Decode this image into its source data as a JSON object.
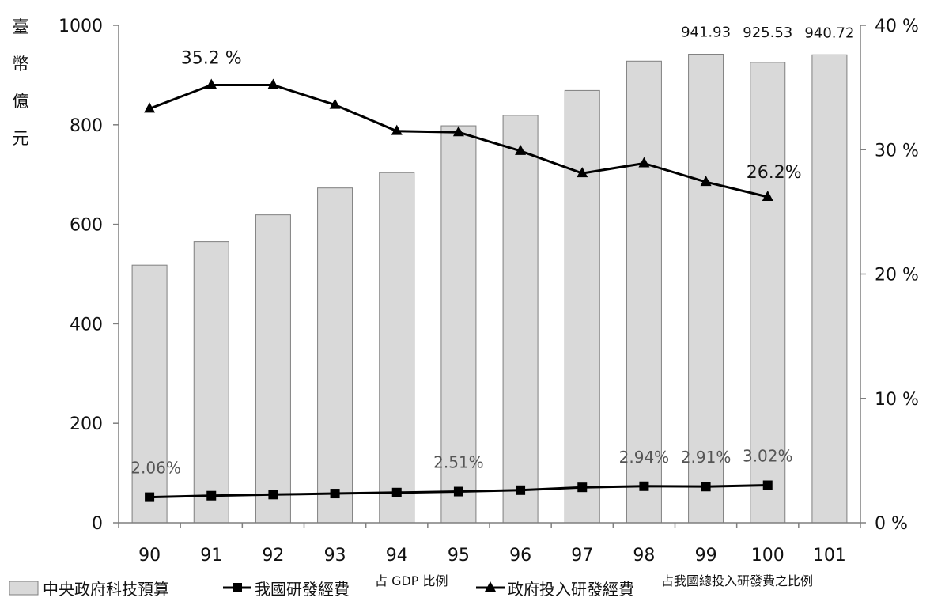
{
  "chart_data": {
    "type": "bar",
    "title": "",
    "xlabel": "",
    "ylabel": "臺幣億元",
    "categories": [
      "90",
      "91",
      "92",
      "93",
      "94",
      "95",
      "96",
      "97",
      "98",
      "99",
      "100",
      "101"
    ],
    "ylim": [
      0,
      1000
    ],
    "y_ticks": [
      "0",
      "200",
      "400",
      "600",
      "800",
      "1000"
    ],
    "y2lim": [
      0,
      40
    ],
    "y2_ticks": [
      "0 %",
      "10 %",
      "20 %",
      "30 %",
      "40 %"
    ],
    "grid": false,
    "legend_position": "bottom",
    "series": [
      {
        "name": "中央政府科技預算",
        "type": "bar",
        "axis": "left",
        "color": "#d9d9d9",
        "values": [
          518,
          565,
          619,
          673,
          704,
          798,
          819,
          869,
          928,
          941.93,
          925.53,
          940.72
        ]
      },
      {
        "name": "我國研發經費",
        "type": "line",
        "axis": "right",
        "marker": "square",
        "color": "#000000",
        "values": [
          2.06,
          2.18,
          2.27,
          2.35,
          2.43,
          2.51,
          2.62,
          2.85,
          2.94,
          2.91,
          3.02,
          null
        ]
      },
      {
        "name": "政府投入研發經費",
        "type": "line",
        "axis": "right",
        "marker": "triangle",
        "color": "#000000",
        "values": [
          33.3,
          35.2,
          35.2,
          33.6,
          31.5,
          31.4,
          29.9,
          28.1,
          28.9,
          27.4,
          26.2,
          null
        ]
      }
    ],
    "bar_labels": [
      {
        "index": 9,
        "text": "941.93"
      },
      {
        "index": 10,
        "text": "925.53"
      },
      {
        "index": 11,
        "text": "940.72"
      }
    ],
    "gdp_labels": [
      {
        "index": 0,
        "text": "2.06%"
      },
      {
        "index": 5,
        "text": "2.51%"
      },
      {
        "index": 8,
        "text": "2.94%"
      },
      {
        "index": 9,
        "text": "2.91%"
      },
      {
        "index": 10,
        "text": "3.02%"
      }
    ],
    "gov_labels": [
      {
        "index": 1,
        "text": "35.2 %"
      },
      {
        "index": 10,
        "text": "26.2%"
      }
    ],
    "legend": [
      {
        "key": "budget",
        "label": "中央政府科技預算",
        "suffix": ""
      },
      {
        "key": "gdp",
        "label": "我國研發經費",
        "suffix": "占 GDP 比例"
      },
      {
        "key": "gov",
        "label": "政府投入研發經費",
        "suffix": "占我國總投入研發費之比例"
      }
    ]
  }
}
